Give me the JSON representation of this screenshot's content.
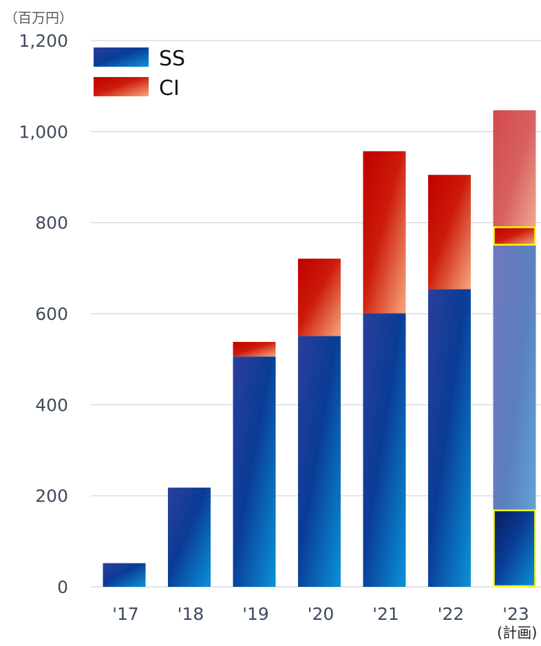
{
  "chart_data": {
    "type": "bar",
    "stacked": true,
    "unit_label": "（百万円）",
    "categories": [
      "'17",
      "'18",
      "'19",
      "'20",
      "'21",
      "'22",
      "'23"
    ],
    "category_note": "(計画)",
    "series": [
      {
        "name": "SS",
        "values": [
          52,
          218,
          506,
          551,
          601,
          654,
          750
        ]
      },
      {
        "name": "CI",
        "values": [
          0,
          0,
          32,
          170,
          356,
          251,
          297
        ]
      }
    ],
    "highlight_sub_values": {
      "SS": 168,
      "CI": 40
    },
    "ylim": [
      0,
      1200
    ],
    "yticks": [
      0,
      200,
      400,
      600,
      800,
      1000,
      1200
    ],
    "ytick_labels": [
      "0",
      "200",
      "400",
      "600",
      "800",
      "1,000",
      "1,200"
    ],
    "grid": true,
    "legend_position": "top-left",
    "colors": {
      "ss_dark": "#0a2a7a",
      "ss_light": "#0a8ed6",
      "ci_dark": "#c00000",
      "ci_light": "#f5a37e",
      "highlight_border": "#ffff00",
      "grid": "#d9dce3",
      "tick_text": "#3d4a5c"
    }
  }
}
